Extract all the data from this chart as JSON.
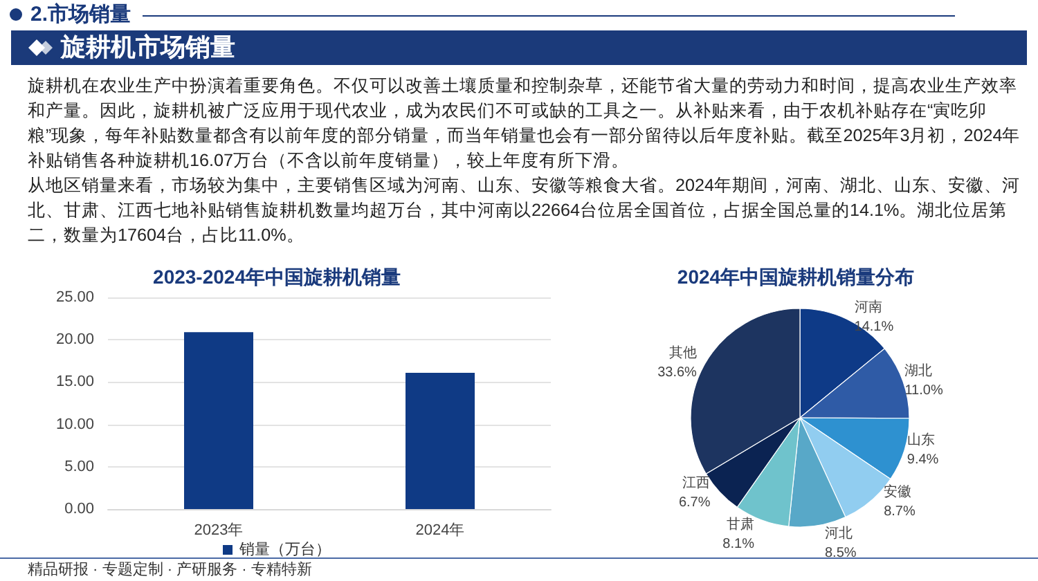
{
  "chart_data": [
    {
      "type": "other",
      "title": "旋耕机市场销量",
      "subtitle": "2.市场销量",
      "annotations": [
        "旋耕机在农业生产中扮演着重要角色。不仅可以改善土壤质量和控制杂草，还能节省大量的劳动力和时间，提高农业生产效率和产量。因此，旋耕机被广泛应用于现代农业，成为农民们不可或缺的工具之一。从补贴来看，由于农机补贴存在“寅吃卯粮”现象，每年补贴数量都含有以前年度的部分销量，而当年销量也会有一部分留待以后年度补贴。截至2025年3月初，2024年补贴销售各种旋耕机16.07万台（不含以前年度销量），较上年度有所下滑。",
        "从地区销量来看，市场较为集中，主要销售区域为河南、山东、安徽等粮食大省。2024年期间，河南、湖北、山东、安徽、河北、甘肃、江西七地补贴销售旋耕机数量均超万台，其中河南以22664台位居全国首位，占据全国总量的14.1%。湖北位居第二，数量为17604台，占比11.0%。"
      ]
    },
    {
      "type": "bar",
      "title": "2023-2024年中国旋耕机销量",
      "categories": [
        "2023年",
        "2024年"
      ],
      "series": [
        {
          "name": "销量（万台）",
          "color": "#0f3a85",
          "values": [
            20.9,
            16.1
          ]
        }
      ],
      "ylim": [
        0,
        25
      ],
      "yticks": [
        {
          "value": 0,
          "label": "0.00"
        },
        {
          "value": 5,
          "label": "5.00"
        },
        {
          "value": 10,
          "label": "10.00"
        },
        {
          "value": 15,
          "label": "15.00"
        },
        {
          "value": 20,
          "label": "20.00"
        },
        {
          "value": 25,
          "label": "25.00"
        }
      ],
      "grid": "y",
      "legend": "bottom",
      "annotations": [
        "精品研报 · 专题定制 · 产研服务 · 专精特新"
      ]
    },
    {
      "type": "pie",
      "title": "2024年中国旋耕机销量分布",
      "categories": [
        "河南",
        "湖北",
        "山东",
        "安徽",
        "河北",
        "甘肃",
        "江西",
        "其他"
      ],
      "values": [
        14.1,
        11.0,
        9.4,
        8.7,
        8.5,
        8.1,
        6.7,
        33.6
      ],
      "colors": [
        "#0e3a87",
        "#2f5ba6",
        "#2e91d0",
        "#91cdf0",
        "#58a8c8",
        "#6fc3cc",
        "#0b2352",
        "#1d3460"
      ],
      "value_labels": [
        "14.1%",
        "11.0%",
        "9.4%",
        "8.7%",
        "8.5%",
        "8.1%",
        "6.7%",
        "33.6%"
      ]
    }
  ]
}
